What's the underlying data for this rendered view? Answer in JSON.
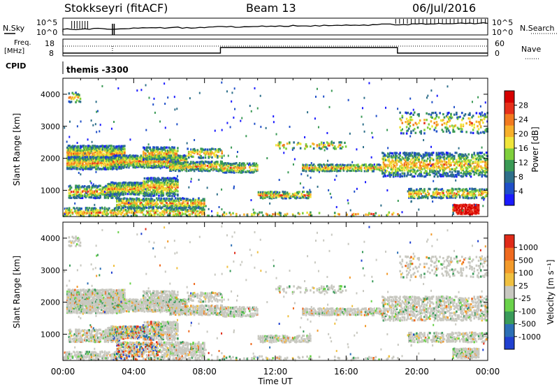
{
  "header": {
    "station": "Stokkseyri (fitACF)",
    "beam": "Beam 13",
    "date": "06/Jul/2016"
  },
  "top_panels": {
    "nsky_label": "N.Sky",
    "nsearch_label": "N.Search",
    "count_ticks_left": [
      "10^5",
      "10^0"
    ],
    "count_ticks_right": [
      "10^5",
      "10^0"
    ],
    "freq_label_1": "Freq.",
    "freq_label_2": "[MHz]",
    "freq_ticks": [
      "18",
      "8"
    ],
    "nave_label": "Nave",
    "nave_ticks": [
      "60",
      "0"
    ],
    "cpid_label": "CPID",
    "cpid_text": "themis -3300"
  },
  "chart_data": [
    {
      "type": "heatmap",
      "name": "power",
      "ylabel": "Slant Range [km]",
      "xlabel": "Time UT",
      "x_ticks": [
        "00:00",
        "04:00",
        "08:00",
        "12:00",
        "16:00",
        "20:00",
        "00:00"
      ],
      "y_ticks": [
        "1000",
        "2000",
        "3000",
        "4000"
      ],
      "xlim_hours": [
        0,
        24
      ],
      "ylim_km": [
        180,
        4500
      ],
      "colorbar_label": "Power [dB]",
      "colorbar_ticks": [
        "28",
        "24",
        "20",
        "16",
        "12",
        "8",
        "4"
      ],
      "colorbar_colors": [
        "#1a1aff",
        "#1f4fc8",
        "#2e6f8a",
        "#3a9a55",
        "#7fcf3c",
        "#f0e53a",
        "#f7b02a",
        "#f27a1f",
        "#e6301a",
        "#d60000"
      ]
    },
    {
      "type": "heatmap",
      "name": "velocity",
      "ylabel": "Slant Range [km]",
      "xlabel": "Time UT",
      "x_ticks": [
        "00:00",
        "04:00",
        "08:00",
        "12:00",
        "16:00",
        "20:00",
        "00:00"
      ],
      "y_ticks": [
        "1000",
        "2000",
        "3000",
        "4000"
      ],
      "xlim_hours": [
        0,
        24
      ],
      "ylim_km": [
        180,
        4500
      ],
      "colorbar_label": "Velocity [m s⁻¹]",
      "colorbar_ticks": [
        "1000",
        "500",
        "100",
        "25",
        "-25",
        "-100",
        "-500",
        "-1000"
      ],
      "colorbar_colors": [
        "#2040d0",
        "#2c6fb5",
        "#3a9b5a",
        "#6ad24a",
        "#c8c8c0",
        "#f0c040",
        "#f39a2a",
        "#ef6a1f",
        "#e02a18"
      ]
    }
  ],
  "colors": {
    "ground_scatter": "#c8c8c0",
    "axes": "#000000"
  }
}
